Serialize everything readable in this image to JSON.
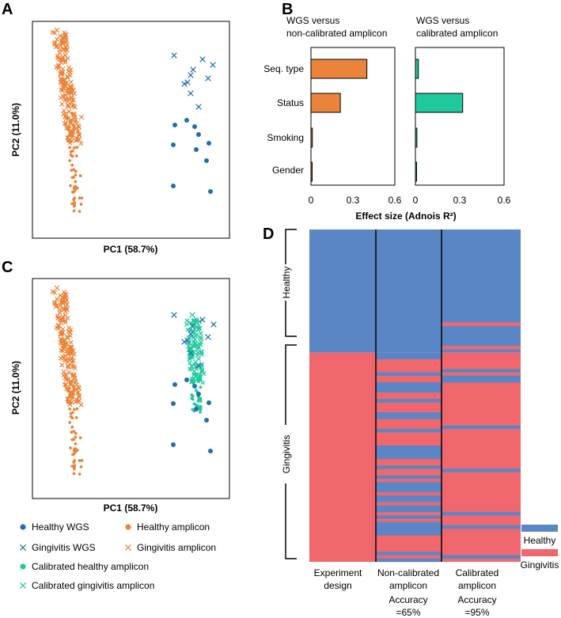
{
  "panels": {
    "a": "A",
    "b": "B",
    "c": "C",
    "d": "D"
  },
  "colors": {
    "orange": "#e9843a",
    "blue": "#1f6fb2",
    "teal": "#20c99c",
    "healthy_bar": "#5b86c6",
    "gingivitis_bar": "#f0676d"
  },
  "chart_data": [
    {
      "id": "A",
      "type": "scatter",
      "xlabel": "PC1 (58.7%)",
      "ylabel": "PC2 (11.0%)",
      "series": [
        {
          "name": "Healthy WGS",
          "marker": "dot",
          "points": [
            [
              0.05,
              0.25
            ],
            [
              0.07,
              0.18
            ],
            [
              0.04,
              0.15
            ],
            [
              0.11,
              0.1
            ],
            [
              0.13,
              0.02
            ],
            [
              0.09,
              0.05
            ],
            [
              0.03,
              -0.05
            ],
            [
              0.14,
              -0.08
            ]
          ]
        },
        {
          "name": "Gingivitis WGS",
          "marker": "x",
          "points": [
            [
              0.03,
              0.72
            ],
            [
              0.09,
              0.66
            ],
            [
              0.12,
              0.63
            ],
            [
              0.07,
              0.6
            ],
            [
              0.06,
              0.57
            ],
            [
              0.11,
              0.55
            ],
            [
              0.07,
              0.5
            ],
            [
              0.1,
              0.51
            ],
            [
              0.06,
              0.45
            ],
            [
              0.08,
              0.4
            ]
          ]
        },
        {
          "name": "Healthy amplicon",
          "marker": "dot",
          "points": []
        },
        {
          "name": "Gingivitis amplicon",
          "marker": "x",
          "points": []
        }
      ]
    },
    {
      "id": "B",
      "type": "bar",
      "orientation": "horizontal",
      "categories": [
        "Seq. type",
        "Status",
        "Smoking",
        "Gender"
      ],
      "xlabel": "Effect size (Adnois R²)",
      "xlim": [
        0,
        0.6
      ],
      "ticks": [
        "0",
        "0.3",
        "0.6"
      ],
      "series": [
        {
          "name": "WGS versus non-calibrated amplicon",
          "title_line1": "WGS versus",
          "title_line2": "non-calibrated amplicon",
          "values": [
            0.4,
            0.21,
            0.01,
            0.005
          ]
        },
        {
          "name": "WGS versus calibrated amplicon",
          "title_line1": "WGS versus",
          "title_line2": "calibrated amplicon",
          "values": [
            0.02,
            0.32,
            0.01,
            0.005
          ]
        }
      ]
    },
    {
      "id": "C",
      "type": "scatter",
      "xlabel": "PC1 (58.7%)",
      "ylabel": "PC2 (11.0%)",
      "series": [
        {
          "name": "Healthy WGS",
          "marker": "dot"
        },
        {
          "name": "Gingivitis WGS",
          "marker": "x"
        },
        {
          "name": "Healthy amplicon",
          "marker": "dot"
        },
        {
          "name": "Gingivitis amplicon",
          "marker": "x"
        },
        {
          "name": "Calibrated healthy amplicon",
          "marker": "dot"
        },
        {
          "name": "Calibrated gingivitis amplicon",
          "marker": "x"
        }
      ]
    },
    {
      "id": "D",
      "type": "heatmap",
      "columns": [
        {
          "line1": "Experiment",
          "line2": "design",
          "accuracy_label": "",
          "accuracy_value": ""
        },
        {
          "line1": "Non-calibrated",
          "line2": "amplicon",
          "accuracy_label": "Accuracy",
          "accuracy_value": "=65%"
        },
        {
          "line1": "Calibrated",
          "line2": "amplicon",
          "accuracy_label": "Accuracy",
          "accuracy_value": "=95%"
        }
      ],
      "groups": [
        "Healthy",
        "Gingivitis"
      ],
      "legend": [
        "Healthy",
        "Gingivitis"
      ],
      "n_samples": 100,
      "healthy_count": 37,
      "non_calibrated_mismatch_rate": 0.35,
      "calibrated_mismatch_rate": 0.05
    }
  ],
  "legend": {
    "items": [
      {
        "label": "Healthy WGS",
        "marker": "dot",
        "color": "#1f6fb2"
      },
      {
        "label": "Healthy amplicon",
        "marker": "dot",
        "color": "#e9843a"
      },
      {
        "label": "Gingivitis WGS",
        "marker": "x",
        "color": "#1f6fb2"
      },
      {
        "label": "Gingivitis amplicon",
        "marker": "x",
        "color": "#e9843a"
      },
      {
        "label": "Calibrated healthy amplicon",
        "marker": "dot",
        "color": "#20c99c"
      },
      {
        "label": "Calibrated gingivitis amplicon",
        "marker": "x",
        "color": "#20c99c"
      }
    ]
  }
}
